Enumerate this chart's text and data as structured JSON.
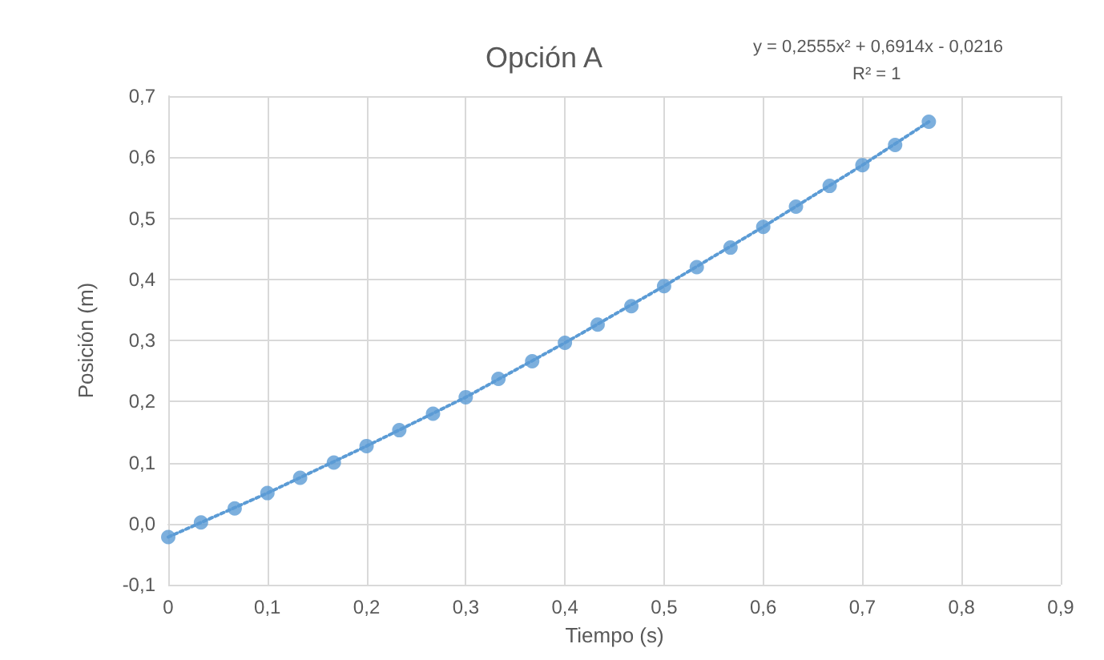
{
  "chart_data": {
    "type": "scatter",
    "title": "Opción A",
    "xlabel": "Tiempo (s)",
    "ylabel": "Posición (m)",
    "annotations": [
      "y = 0,2555x² + 0,6914x - 0,0216",
      "R² = 1"
    ],
    "x": [
      0,
      0.033,
      0.067,
      0.1,
      0.133,
      0.167,
      0.2,
      0.233,
      0.267,
      0.3,
      0.333,
      0.367,
      0.4,
      0.433,
      0.467,
      0.5,
      0.533,
      0.567,
      0.6,
      0.633,
      0.667,
      0.7,
      0.733,
      0.767
    ],
    "series": [
      {
        "color": "#5b9bd5",
        "marker": "circle",
        "values": [
          -0.022,
          0.002,
          0.025,
          0.05,
          0.075,
          0.1,
          0.127,
          0.153,
          0.18,
          0.207,
          0.237,
          0.266,
          0.296,
          0.326,
          0.356,
          0.389,
          0.42,
          0.452,
          0.486,
          0.519,
          0.553,
          0.587,
          0.62,
          0.658
        ]
      },
      {
        "type": "line",
        "color": "#5b9bd5",
        "line_style": "dotted",
        "marker": "none",
        "x": [
          0,
          0.1,
          0.2,
          0.3,
          0.4,
          0.5,
          0.6,
          0.7,
          0.767
        ],
        "values": [
          -0.022,
          0.05,
          0.127,
          0.207,
          0.296,
          0.389,
          0.486,
          0.587,
          0.658
        ]
      }
    ],
    "xlim": [
      0,
      0.9
    ],
    "xticks": [
      {
        "value": 0,
        "label": "0"
      },
      {
        "value": 0.1,
        "label": "0,1"
      },
      {
        "value": 0.2,
        "label": "0,2"
      },
      {
        "value": 0.3,
        "label": "0,3"
      },
      {
        "value": 0.4,
        "label": "0,4"
      },
      {
        "value": 0.5,
        "label": "0,5"
      },
      {
        "value": 0.6,
        "label": "0,6"
      },
      {
        "value": 0.7,
        "label": "0,7"
      },
      {
        "value": 0.8,
        "label": "0,8"
      },
      {
        "value": 0.9,
        "label": "0,9"
      }
    ],
    "ylim": [
      -0.1,
      0.7
    ],
    "yticks": [
      {
        "value": -0.1,
        "label": "-0,1"
      },
      {
        "value": 0,
        "label": "0,0"
      },
      {
        "value": 0.1,
        "label": "0,1"
      },
      {
        "value": 0.2,
        "label": "0,2"
      },
      {
        "value": 0.3,
        "label": "0,3"
      },
      {
        "value": 0.4,
        "label": "0,4"
      },
      {
        "value": 0.5,
        "label": "0,5"
      },
      {
        "value": 0.6,
        "label": "0,6"
      },
      {
        "value": 0.7,
        "label": "0,7"
      }
    ],
    "grid": true
  }
}
